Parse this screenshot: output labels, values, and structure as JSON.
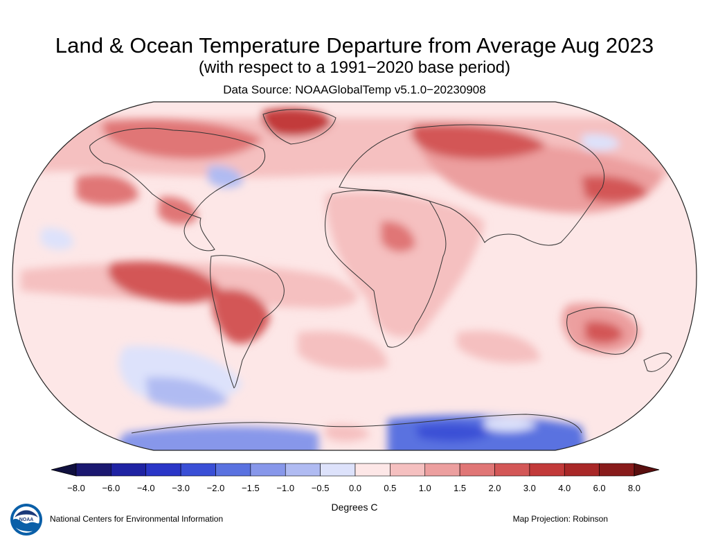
{
  "header": {
    "title": "Land & Ocean Temperature Departure from Average Aug 2023",
    "subtitle": "(with respect to a 1991−2020 base period)",
    "source": "Data Source: NOAAGlobalTemp v5.1.0−20230908"
  },
  "colorbar": {
    "labels": [
      "−8.0",
      "−6.0",
      "−4.0",
      "−3.0",
      "−2.0",
      "−1.5",
      "−1.0",
      "−0.5",
      "0.0",
      "0.5",
      "1.0",
      "1.5",
      "2.0",
      "3.0",
      "4.0",
      "6.0",
      "8.0"
    ],
    "colors": [
      "#1b1870",
      "#1f23a3",
      "#2a36c7",
      "#3a4fd6",
      "#5a72e0",
      "#8797ea",
      "#b0bbf2",
      "#dde2fb",
      "#fde7e7",
      "#f5c0c0",
      "#ec9f9f",
      "#e07676",
      "#d35757",
      "#c23a3a",
      "#a92828",
      "#881b1b"
    ],
    "low_color": "#10103f",
    "high_color": "#5a0f0f",
    "units": "Degrees C"
  },
  "footer": {
    "organization": "National Centers for Environmental Information",
    "projection": "Map Projection: Robinson",
    "logo_text": "NOAA"
  },
  "map": {
    "projection": "Robinson",
    "base_color": "#fde7e7",
    "outline_color": "#333333"
  }
}
